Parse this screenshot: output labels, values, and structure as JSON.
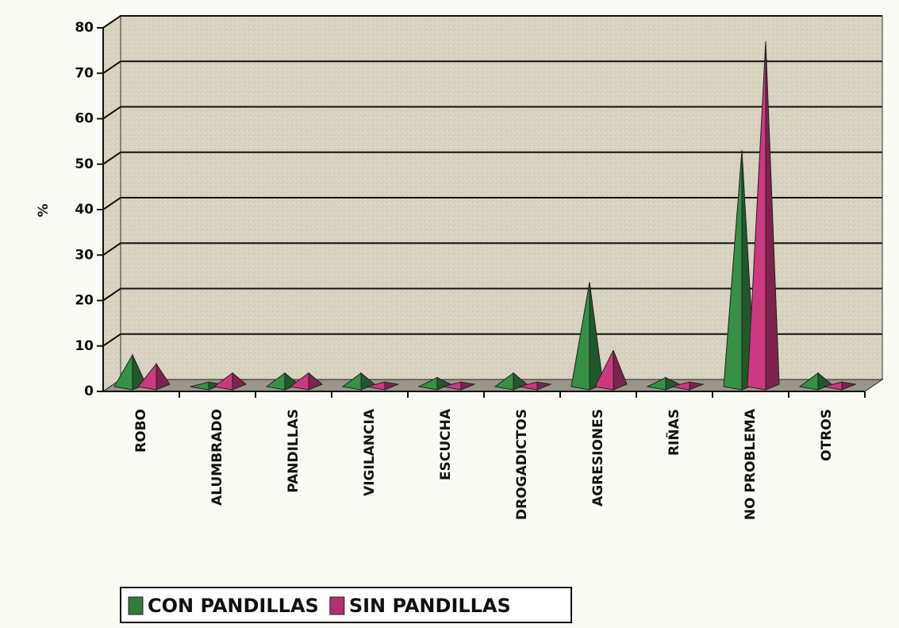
{
  "chart_data": {
    "type": "bar",
    "y_label": "%",
    "categories": [
      "ROBO",
      "ALUMBRADO",
      "PANDILLAS",
      "VIGILANCIA",
      "ESCUCHA",
      "DROGADICTOS",
      "AGRESIONES",
      "RIÑAS",
      "NO PROBLEMA",
      "OTROS"
    ],
    "series": [
      {
        "name": "CON PANDILLAS",
        "color": "#2f7d3c",
        "values": [
          7,
          1,
          3,
          3,
          2,
          3,
          23,
          2,
          52,
          3
        ]
      },
      {
        "name": "SIN PANDILLAS",
        "color": "#b2326e",
        "values": [
          5,
          3,
          3,
          1,
          1,
          1,
          8,
          1,
          76,
          1
        ]
      }
    ],
    "ylim": [
      0,
      80
    ],
    "yticks": [
      0,
      10,
      20,
      30,
      40,
      50,
      60,
      70,
      80
    ],
    "grid": true,
    "legend": "bottom-left"
  }
}
